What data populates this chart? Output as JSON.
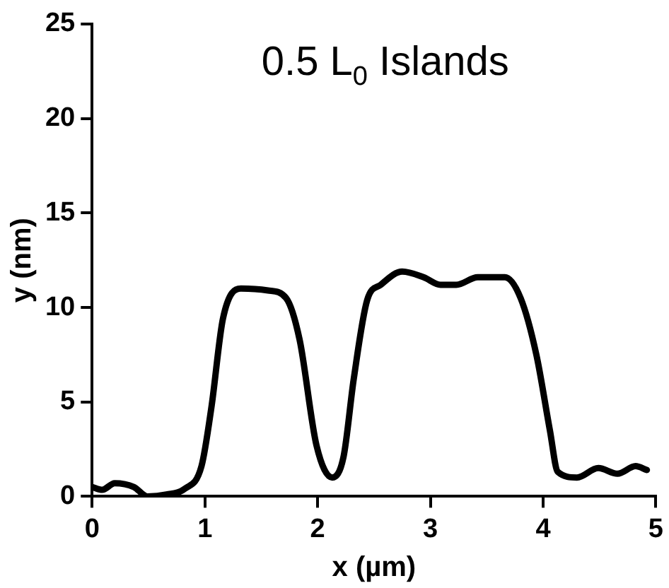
{
  "chart_data": {
    "type": "line",
    "title": "0.5 L$_{0}$ Islands",
    "xlabel": "x (µm)",
    "ylabel": "y (nm)",
    "xlim": [
      0,
      5
    ],
    "xticks": [
      0,
      1,
      2,
      3,
      4,
      5
    ],
    "ylim": [
      0,
      25
    ],
    "yticks": [
      0,
      5,
      10,
      15,
      20,
      25
    ],
    "grid": false,
    "legend": false,
    "marker": "none",
    "line_style": "solid",
    "series": [
      {
        "color": "#000000",
        "x": [
          0,
          0.09,
          0.2,
          0.37,
          0.49,
          0.66,
          0.82,
          0.97,
          1.06,
          1.16,
          1.32,
          1.56,
          1.72,
          1.84,
          1.99,
          2.13,
          2.23,
          2.32,
          2.44,
          2.56,
          2.75,
          2.94,
          3.09,
          3.23,
          3.42,
          3.66,
          3.8,
          3.94,
          4.06,
          4.13,
          4.3,
          4.49,
          4.66,
          4.82,
          4.92
        ],
        "values": [
          0.5,
          0.35,
          0.7,
          0.5,
          0,
          0.1,
          0.4,
          1.6,
          4.8,
          9.4,
          11,
          10.9,
          10.5,
          8.3,
          2.7,
          1,
          2.1,
          6.2,
          10.4,
          11.2,
          11.9,
          11.6,
          11.2,
          11.2,
          11.6,
          11.6,
          10.5,
          7.5,
          3.5,
          1.3,
          1,
          1.5,
          1.2,
          1.6,
          1.4
        ]
      }
    ]
  }
}
